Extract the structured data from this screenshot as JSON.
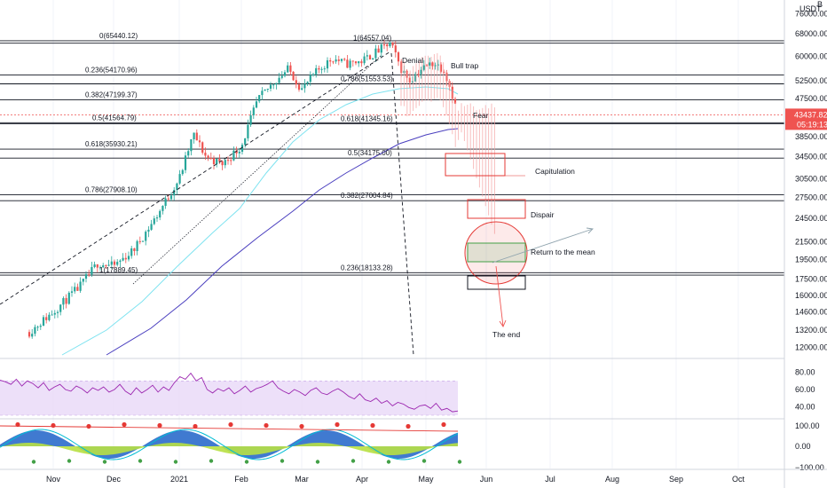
{
  "chart_data": {
    "type": "candlestick",
    "symbol_partial": "B",
    "currency": "USDT",
    "colors": {
      "up": "#26a69a",
      "down": "#ef5350",
      "ma_fast": "#7fe3f0",
      "ma_slow": "#4a3fbf",
      "rsi_line": "#9c27b0",
      "rsi_band": "#e9d8f7",
      "fib_line": "#131722",
      "price_label": "#ef5350",
      "annotation_red": "#e53935",
      "annotation_green": "#43a047"
    },
    "y_axis": {
      "scale": "log",
      "ticks": [
        "76000.00",
        "68000.00",
        "60000.00",
        "52500.00",
        "47500.00",
        "43437.82",
        "38500.00",
        "34500.00",
        "30500.00",
        "27500.00",
        "24500.00",
        "21500.00",
        "19500.00",
        "17500.00",
        "16000.00",
        "14600.00",
        "13200.00",
        "12000.00"
      ],
      "current_price": "43437.82",
      "countdown": "05:19:13"
    },
    "x_axis": {
      "ticks": [
        "Nov",
        "Dec",
        "2021",
        "Feb",
        "Mar",
        "Apr",
        "May",
        "Jun",
        "Jul",
        "Aug",
        "Sep",
        "Oct"
      ]
    },
    "fib_left": [
      {
        "label": "0(65440.12)",
        "value": 65440.12
      },
      {
        "label": "0.236(54170.96)",
        "value": 54170.96
      },
      {
        "label": "0.382(47199.37)",
        "value": 47199.37
      },
      {
        "label": "0.5(41564.79)",
        "value": 41564.79
      },
      {
        "label": "0.618(35930.21)",
        "value": 35930.21
      },
      {
        "label": "0.786(27908.10)",
        "value": 27908.1
      },
      {
        "label": "1(17889.45)",
        "value": 17889.45
      }
    ],
    "fib_right": [
      {
        "label": "1(64557.04)",
        "value": 64557.04
      },
      {
        "label": "0.786(51553.53)",
        "value": 51553.53
      },
      {
        "label": "0.618(41345.16)",
        "value": 41345.16
      },
      {
        "label": "0.5(34175.00)",
        "value": 34175.0
      },
      {
        "label": "0.382(27004.84)",
        "value": 27004.84
      },
      {
        "label": "0.236(18133.28)",
        "value": 18133.28
      }
    ],
    "annotations": [
      "Denial",
      "Bull trap",
      "Fear",
      "Capitulation",
      "Dispair",
      "Return to the mean",
      "The end"
    ],
    "rsi": {
      "ticks": [
        "80.00",
        "60.00",
        "40.00"
      ],
      "band": [
        30,
        70
      ],
      "values": [
        71,
        69,
        66,
        72,
        64,
        70,
        67,
        62,
        68,
        59,
        63,
        66,
        60,
        58,
        64,
        61,
        56,
        62,
        59,
        63,
        57,
        60,
        66,
        58,
        54,
        62,
        56,
        60,
        65,
        57,
        63,
        59,
        68,
        75,
        72,
        79,
        70,
        74,
        60,
        56,
        61,
        58,
        62,
        55,
        59,
        64,
        57,
        61,
        63,
        66,
        70,
        62,
        58,
        55,
        60,
        57,
        53,
        59,
        62,
        56,
        54,
        58,
        61,
        57,
        52,
        49,
        55,
        48,
        46,
        50,
        44,
        47,
        41,
        45,
        43,
        39,
        37,
        41,
        42,
        38,
        44,
        36,
        38,
        34,
        35
      ]
    },
    "oscillator": {
      "ticks": [
        "100.00",
        "0.00",
        "−100.00"
      ]
    }
  }
}
